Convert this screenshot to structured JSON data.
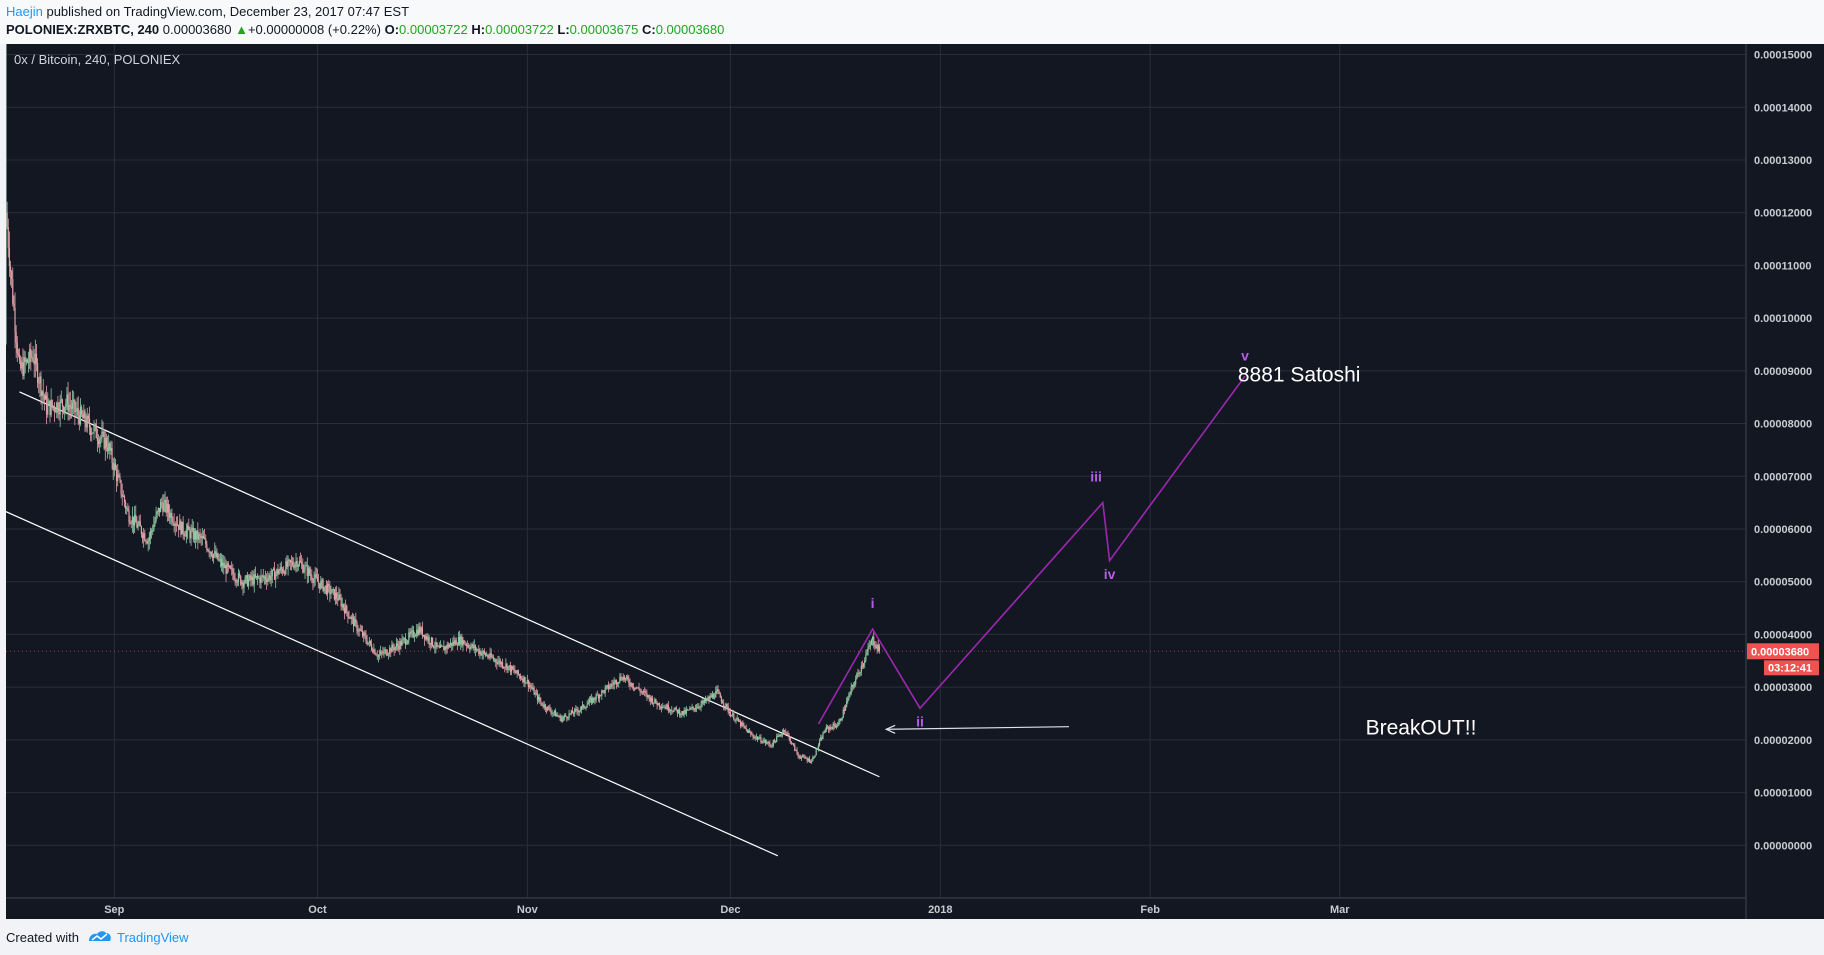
{
  "header": {
    "author": "Haejin",
    "published_text": " published on TradingView.com, December 23, 2017 07:47 EST",
    "symbol": "POLONIEX:ZRXBTC, 240",
    "last": "0.00003680",
    "arrow": "▲",
    "change": "+0.00000008 (+0.22%)",
    "o_label": "O:",
    "o_value": "0.00003722",
    "h_label": "H:",
    "h_value": "0.00003722",
    "l_label": "L:",
    "l_value": "0.00003675",
    "c_label": "C:",
    "c_value": "0.00003680"
  },
  "footer": {
    "created_with": "Created with",
    "brand": "TradingView"
  },
  "chart_data": {
    "type": "candlestick",
    "pane_title": "0x / Bitcoin, 240, POLONIEX",
    "x_axis": {
      "start": "2017-08-16",
      "end": "2018-04-30",
      "ticks": [
        {
          "label": "Sep",
          "date": "2017-09-01"
        },
        {
          "label": "Oct",
          "date": "2017-10-01"
        },
        {
          "label": "Nov",
          "date": "2017-11-01"
        },
        {
          "label": "Dec",
          "date": "2017-12-01"
        },
        {
          "label": "2018",
          "date": "2018-01-01",
          "bold": true
        },
        {
          "label": "Feb",
          "date": "2018-02-01"
        },
        {
          "label": "Mar",
          "date": "2018-03-01"
        }
      ]
    },
    "y_axis": {
      "min": -1e-05,
      "max": 0.000152,
      "ticks": [
        "0.00000000",
        "0.00001000",
        "0.00002000",
        "0.00003000",
        "0.00004000",
        "0.00005000",
        "0.00006000",
        "0.00007000",
        "0.00008000",
        "0.00009000",
        "0.00010000",
        "0.00011000",
        "0.00012000",
        "0.00013000",
        "0.00014000",
        "0.00015000"
      ]
    },
    "price_path": [
      [
        "2017-08-16",
        0.000152
      ],
      [
        "2017-08-16",
        0.00012
      ],
      [
        "2017-08-17",
        0.000104
      ],
      [
        "2017-08-18",
        9e-05
      ],
      [
        "2017-08-20",
        9.3e-05
      ],
      [
        "2017-08-22",
        8.3e-05
      ],
      [
        "2017-08-25",
        8.4e-05
      ],
      [
        "2017-08-28",
        8e-05
      ],
      [
        "2017-08-31",
        7.6e-05
      ],
      [
        "2017-09-03",
        6.3e-05
      ],
      [
        "2017-09-06",
        5.8e-05
      ],
      [
        "2017-09-08",
        6.5e-05
      ],
      [
        "2017-09-11",
        6e-05
      ],
      [
        "2017-09-14",
        5.8e-05
      ],
      [
        "2017-09-17",
        5.3e-05
      ],
      [
        "2017-09-20",
        5e-05
      ],
      [
        "2017-09-24",
        5.1e-05
      ],
      [
        "2017-09-28",
        5.4e-05
      ],
      [
        "2017-10-01",
        5e-05
      ],
      [
        "2017-10-04",
        4.7e-05
      ],
      [
        "2017-10-07",
        4.1e-05
      ],
      [
        "2017-10-10",
        3.6e-05
      ],
      [
        "2017-10-13",
        3.8e-05
      ],
      [
        "2017-10-16",
        4.1e-05
      ],
      [
        "2017-10-19",
        3.7e-05
      ],
      [
        "2017-10-22",
        3.9e-05
      ],
      [
        "2017-10-26",
        3.6e-05
      ],
      [
        "2017-10-29",
        3.4e-05
      ],
      [
        "2017-11-01",
        3.1e-05
      ],
      [
        "2017-11-03",
        2.7e-05
      ],
      [
        "2017-11-06",
        2.4e-05
      ],
      [
        "2017-11-09",
        2.6e-05
      ],
      [
        "2017-11-12",
        2.9e-05
      ],
      [
        "2017-11-15",
        3.2e-05
      ],
      [
        "2017-11-18",
        2.9e-05
      ],
      [
        "2017-11-20",
        2.7e-05
      ],
      [
        "2017-11-24",
        2.5e-05
      ],
      [
        "2017-11-27",
        2.7e-05
      ],
      [
        "2017-11-29",
        2.9e-05
      ],
      [
        "2017-12-01",
        2.5e-05
      ],
      [
        "2017-12-04",
        2.1e-05
      ],
      [
        "2017-12-07",
        1.9e-05
      ],
      [
        "2017-12-09",
        2.2e-05
      ],
      [
        "2017-12-11",
        1.7e-05
      ],
      [
        "2017-12-13",
        1.6e-05
      ],
      [
        "2017-12-15",
        2.2e-05
      ],
      [
        "2017-12-17",
        2.3e-05
      ],
      [
        "2017-12-19",
        3e-05
      ],
      [
        "2017-12-21",
        3.6e-05
      ],
      [
        "2017-12-22",
        3.9e-05
      ],
      [
        "2017-12-23",
        3.7e-05
      ]
    ],
    "channel_lines": [
      {
        "from": [
          "2017-08-18",
          8.6e-05
        ],
        "to": [
          "2017-12-23",
          1.3e-05
        ]
      },
      {
        "from": [
          "2017-08-13",
          6.5e-05
        ],
        "to": [
          "2017-12-08",
          -2e-06
        ]
      }
    ],
    "breakout_arrow": {
      "from": [
        "2018-01-20",
        2.25e-05
      ],
      "to": [
        "2017-12-24",
        2.2e-05
      ]
    },
    "wave_path": [
      [
        "2017-12-14",
        2.3e-05
      ],
      [
        "2017-12-22",
        4.1e-05
      ],
      [
        "2017-12-29",
        2.6e-05
      ],
      [
        "2018-01-25",
        6.5e-05
      ],
      [
        "2018-01-26",
        5.4e-05
      ],
      [
        "2018-02-15",
        8.9e-05
      ]
    ],
    "wave_labels": [
      {
        "text": "i",
        "at": [
          "2017-12-22",
          4.5e-05
        ]
      },
      {
        "text": "ii",
        "at": [
          "2017-12-29",
          2.25e-05
        ]
      },
      {
        "text": "iii",
        "at": [
          "2018-01-24",
          6.9e-05
        ]
      },
      {
        "text": "iv",
        "at": [
          "2018-01-26",
          5.05e-05
        ]
      },
      {
        "text": "v",
        "at": [
          "2018-02-15",
          9.2e-05
        ]
      }
    ],
    "annotations": [
      {
        "text": "8881 Satoshi",
        "at": [
          "2018-02-23",
          8.8e-05
        ]
      },
      {
        "text": "BreakOUT!!",
        "at": [
          "2018-03-13",
          2.1e-05
        ]
      }
    ],
    "current_price": {
      "value": 3.68e-05,
      "label": "0.00003680",
      "countdown": "03:12:41"
    },
    "colors": {
      "background": "#131722",
      "grid": "#2a2e39",
      "axis_text": "#c9cbd1",
      "candle_up": "#8fc9a0",
      "candle_down": "#e2a0a8",
      "channel": "#ffffff",
      "wave": "#9c27b0",
      "wave_label": "#b45ee6",
      "price_tag": "#ef5350"
    }
  }
}
